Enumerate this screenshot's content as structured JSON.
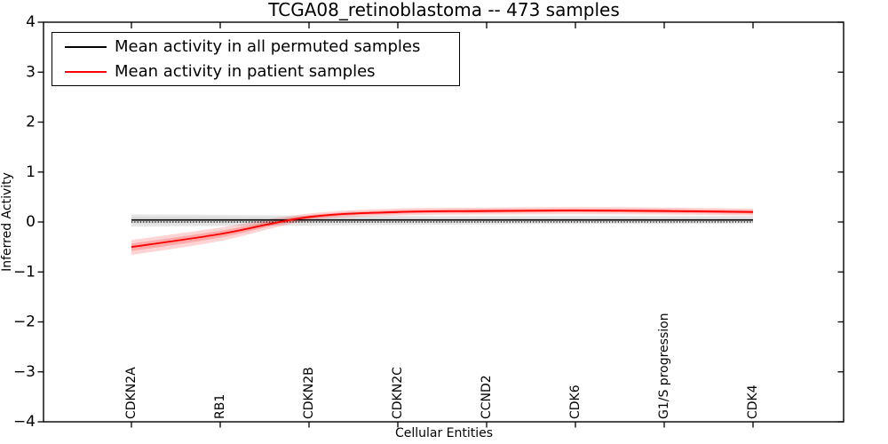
{
  "title": "TCGA08_retinoblastoma -- 473 samples",
  "legend": {
    "items": [
      {
        "label": "Mean activity in all permuted samples",
        "color": "#000000"
      },
      {
        "label": "Mean activity in patient samples",
        "color": "#ff0000"
      }
    ]
  },
  "chart_data": {
    "type": "line",
    "title": "TCGA08_retinoblastoma -- 473 samples",
    "xlabel": "Cellular Entities",
    "ylabel": "Inferred Activity",
    "ylim": [
      -4,
      4
    ],
    "yticks": [
      4,
      3,
      2,
      1,
      0,
      -1,
      -2,
      -3,
      -4
    ],
    "ytick_labels": [
      "4",
      "3",
      "2",
      "1",
      "0",
      "−1",
      "−2",
      "−3",
      "−4"
    ],
    "grid": false,
    "legend_position": "upper left",
    "categories": [
      "CDKN2A",
      "RB1",
      "CDKN2B",
      "CDKN2C",
      "CCND2",
      "CDK6",
      "G1/S progression",
      "CDK4"
    ],
    "series": [
      {
        "name": "Mean activity in all permuted samples",
        "color": "#000000",
        "band_color": "rgba(0,0,0,0.12)",
        "values": [
          0.04,
          0.04,
          0.04,
          0.04,
          0.04,
          0.04,
          0.04,
          0.04
        ],
        "band_upper": [
          0.15,
          0.14,
          0.13,
          0.12,
          0.12,
          0.12,
          0.12,
          0.12
        ],
        "band_lower": [
          -0.09,
          -0.08,
          -0.07,
          -0.06,
          -0.05,
          -0.04,
          -0.04,
          -0.03
        ]
      },
      {
        "name": "Mean activity in patient samples",
        "color": "#ff0000",
        "band_color": "rgba(255,0,0,0.18)",
        "values": [
          -0.5,
          -0.24,
          0.1,
          0.2,
          0.22,
          0.23,
          0.22,
          0.2
        ],
        "band_upper": [
          -0.36,
          -0.11,
          0.17,
          0.27,
          0.29,
          0.3,
          0.29,
          0.27
        ],
        "band_lower": [
          -0.66,
          -0.38,
          0.03,
          0.13,
          0.15,
          0.16,
          0.15,
          0.13
        ]
      }
    ],
    "zero_line": {
      "value": 0,
      "style": "dotted",
      "color": "#000000"
    }
  }
}
